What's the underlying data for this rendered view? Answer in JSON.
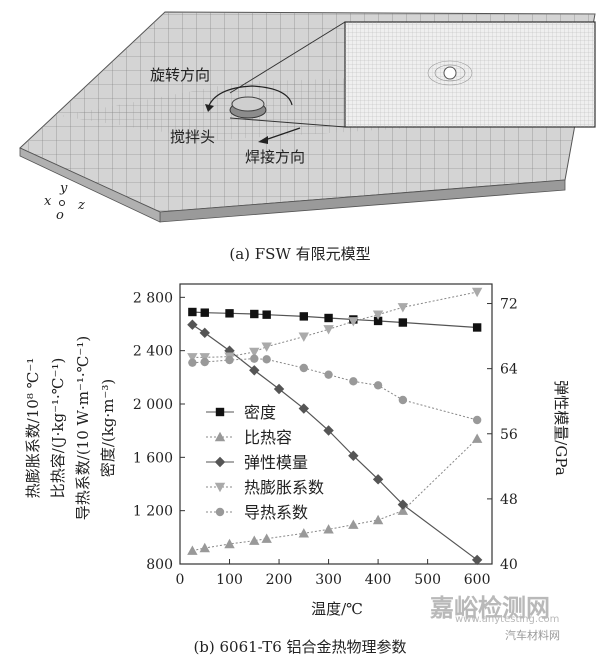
{
  "figure_a": {
    "caption": "(a) FSW 有限元模型",
    "labels": {
      "rotation": "旋转方向",
      "tool": "搅拌头",
      "weld": "焊接方向"
    },
    "axes": {
      "x": "x",
      "y": "y",
      "z": "z",
      "o": "o"
    }
  },
  "figure_b": {
    "caption": "(b) 6061-T6 铝合金热物理参数",
    "left_axis_labels": [
      "热膨胀系数/10⁸ ℃⁻¹",
      "比热容/(J·kg⁻¹·℃⁻¹)",
      "导热系数/(10 W·m⁻¹·℃⁻¹)",
      "密度/(kg·m⁻³)"
    ],
    "right_axis_label": "弹性模量/GPa"
  },
  "chart_data": {
    "type": "line",
    "xlabel": "温度/℃",
    "xlim": [
      0,
      630
    ],
    "x_ticks": [
      0,
      100,
      200,
      300,
      400,
      500,
      600
    ],
    "ylim": [
      800,
      2900
    ],
    "y_ticks": [
      800,
      1200,
      1600,
      2000,
      2400,
      2800
    ],
    "y_tick_labels": [
      "800",
      "1 200",
      "1 600",
      "2 000",
      "2 400",
      "2 800"
    ],
    "y2lim": [
      40,
      74.4
    ],
    "y2_ticks": [
      40,
      48,
      56,
      64,
      72
    ],
    "series": [
      {
        "name": "密度",
        "axis": "left",
        "marker": "square",
        "line": "solid",
        "color": "#777777",
        "x": [
          25,
          50,
          100,
          150,
          175,
          250,
          300,
          350,
          400,
          450,
          600
        ],
        "y": [
          2690,
          2685,
          2680,
          2675,
          2670,
          2657,
          2645,
          2634,
          2623,
          2611,
          2574
        ]
      },
      {
        "name": "比热容",
        "axis": "left",
        "marker": "triangle",
        "line": "dotted",
        "color": "#999999",
        "x": [
          25,
          50,
          100,
          150,
          175,
          250,
          300,
          350,
          400,
          450,
          600
        ],
        "y": [
          900,
          920,
          950,
          975,
          990,
          1030,
          1060,
          1095,
          1130,
          1200,
          1740
        ]
      },
      {
        "name": "弹性模量",
        "axis": "right",
        "marker": "diamond",
        "line": "solid",
        "color": "#777777",
        "x": [
          25,
          50,
          100,
          150,
          200,
          250,
          300,
          350,
          400,
          450,
          600
        ],
        "y": [
          69.4,
          68.4,
          66.2,
          63.8,
          61.5,
          59.1,
          56.4,
          53.3,
          50.4,
          47.3,
          40.5
        ]
      },
      {
        "name": "热膨胀系数",
        "axis": "left",
        "marker": "triangle-down",
        "line": "dotted",
        "color": "#aaaaaa",
        "x": [
          25,
          50,
          100,
          150,
          175,
          250,
          300,
          350,
          400,
          450,
          600
        ],
        "y": [
          2350,
          2350,
          2355,
          2390,
          2430,
          2505,
          2560,
          2620,
          2670,
          2725,
          2840
        ]
      },
      {
        "name": "导热系数",
        "axis": "left",
        "marker": "circle",
        "line": "dotted",
        "color": "#999999",
        "x": [
          25,
          50,
          100,
          150,
          175,
          250,
          300,
          350,
          400,
          450,
          600
        ],
        "y": [
          2310,
          2315,
          2330,
          2340,
          2335,
          2270,
          2220,
          2170,
          2140,
          2030,
          1880
        ]
      }
    ]
  },
  "watermarks": {
    "brand": "嘉峪检测网",
    "url": "www.anytesting.com",
    "wechat": "汽车材料网"
  }
}
